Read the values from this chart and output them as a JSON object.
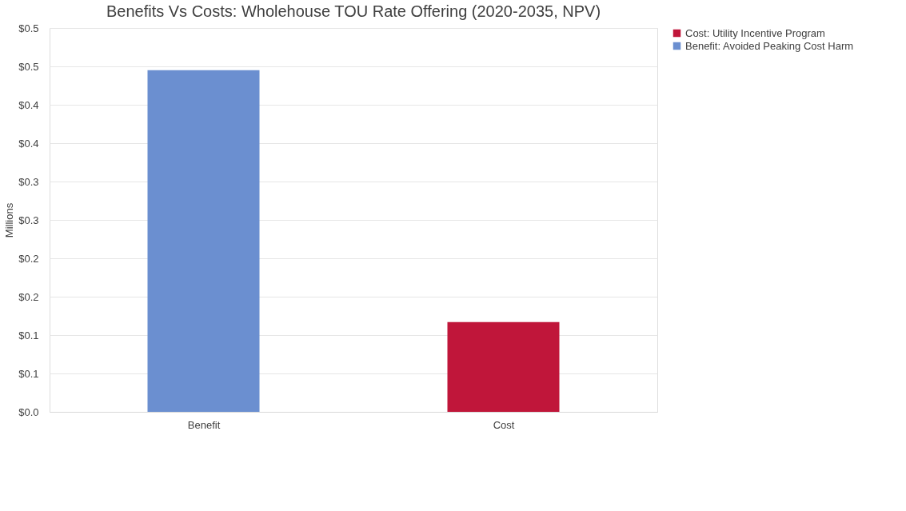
{
  "chart_data": {
    "type": "bar",
    "title": "Benefits Vs Costs: Wholehouse TOU Rate Offering (2020-2035, NPV)",
    "ylabel": "Millions",
    "categories": [
      "Benefit",
      "Cost"
    ],
    "series": [
      {
        "name": "Cost: Utility Incentive Program",
        "color": "#c0163a",
        "values": [
          null,
          0.117
        ]
      },
      {
        "name": "Benefit: Avoided Peaking Cost Harm",
        "color": "#6b8fd0",
        "values": [
          0.445,
          null
        ]
      }
    ],
    "ylim": [
      0,
      0.5
    ],
    "yticks": [
      {
        "value": 0,
        "label": "$0.0"
      },
      {
        "value": 0.05,
        "label": "$0.1"
      },
      {
        "value": 0.1,
        "label": "$0.1"
      },
      {
        "value": 0.15,
        "label": "$0.2"
      },
      {
        "value": 0.2,
        "label": "$0.2"
      },
      {
        "value": 0.25,
        "label": "$0.3"
      },
      {
        "value": 0.3,
        "label": "$0.3"
      },
      {
        "value": 0.35,
        "label": "$0.4"
      },
      {
        "value": 0.4,
        "label": "$0.4"
      },
      {
        "value": 0.45,
        "label": "$0.5"
      },
      {
        "value": 0.5,
        "label": "$0.5"
      }
    ],
    "grid": "y",
    "legend": "right"
  }
}
